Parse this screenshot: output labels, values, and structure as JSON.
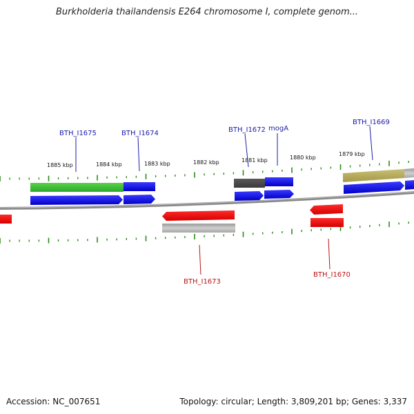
{
  "header": {
    "title": "Burkholderia thailandensis E264 chromosome I, complete genom..."
  },
  "footer": {
    "accession": "Accession: NC_007651",
    "summary": "Topology: circular; Length: 3,809,201 bp; Genes: 3,337"
  },
  "ruler": {
    "tick_labels": [
      "1885 kbp",
      "1884 kbp",
      "1883 kbp",
      "1882 kbp",
      "1881 kbp",
      "1880 kbp",
      "1879 kbp"
    ]
  },
  "colors": {
    "forward_label": "#1a1aaa",
    "reverse_label": "#bb1111",
    "tick": "#2a8a1a",
    "backbone": "#777777"
  },
  "genes": {
    "forward": [
      {
        "label": "BTH_I1675"
      },
      {
        "label": "BTH_I1674"
      },
      {
        "label": "BTH_I1672"
      },
      {
        "label": "mogA"
      },
      {
        "label": "BTH_I1669"
      }
    ],
    "reverse": [
      {
        "label": "BTH_I1673"
      },
      {
        "label": "BTH_I1670"
      }
    ]
  }
}
